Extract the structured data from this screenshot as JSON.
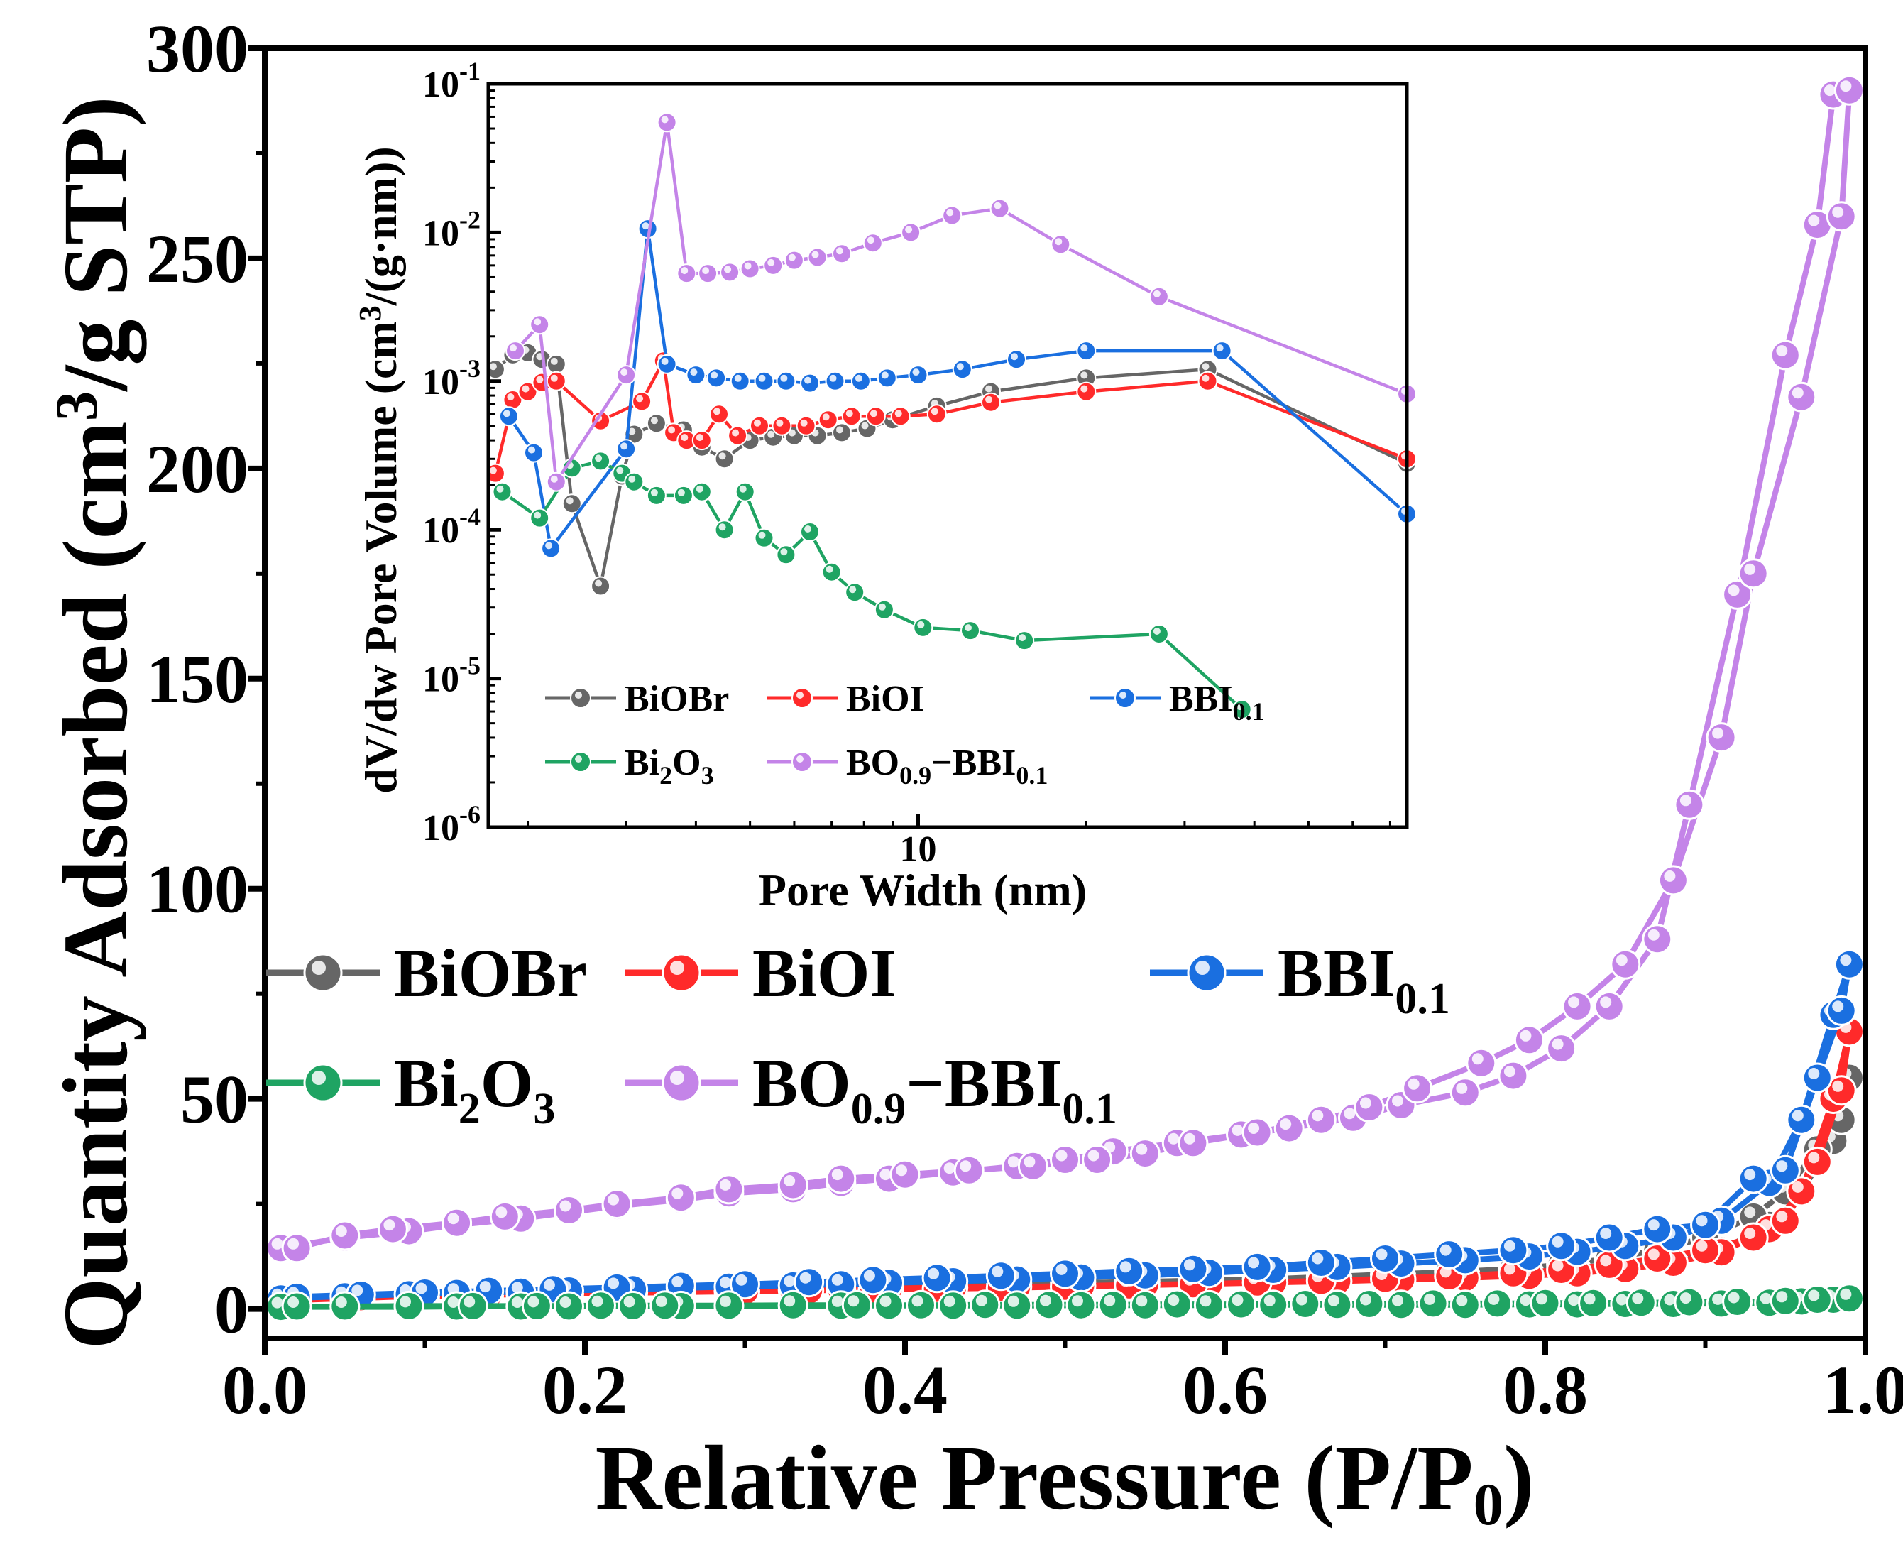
{
  "chart_data": [
    {
      "id": "main",
      "type": "line",
      "xlabel": "Relative Pressure (P/P",
      "xlabel_sub": "0",
      "xlabel_tail": ")",
      "ylabel": "Quantity Adsorbed (cm",
      "ylabel_sup": "3",
      "ylabel_tail": "/g STP)",
      "xlim": [
        0,
        1
      ],
      "ylim": [
        -7,
        300
      ],
      "xticks": [
        0.0,
        0.2,
        0.4,
        0.6,
        0.8,
        1.0
      ],
      "xtick_labels": [
        "0.0",
        "0.2",
        "0.4",
        "0.6",
        "0.8",
        "1.0"
      ],
      "yticks": [
        0,
        50,
        100,
        150,
        200,
        250,
        300
      ],
      "ytick_labels": [
        "0",
        "50",
        "100",
        "150",
        "200",
        "250",
        "300"
      ],
      "legend_position": "left-middle",
      "series": [
        {
          "key": "biobr",
          "color": "#666666",
          "legend_runs": [
            {
              "t": "BiOBr",
              "s": ""
            }
          ],
          "x": [
            0.01,
            0.05,
            0.09,
            0.12,
            0.16,
            0.19,
            0.23,
            0.26,
            0.29,
            0.33,
            0.36,
            0.39,
            0.43,
            0.47,
            0.51,
            0.55,
            0.59,
            0.63,
            0.67,
            0.71,
            0.75,
            0.79,
            0.82,
            0.85,
            0.88,
            0.91,
            0.94,
            0.96,
            0.98,
            0.99,
            0.985,
            0.97,
            0.95,
            0.93,
            0.9,
            0.87,
            0.84,
            0.81,
            0.78,
            0.74,
            0.7,
            0.66,
            0.62,
            0.58,
            0.54,
            0.5,
            0.46,
            0.42,
            0.38,
            0.34,
            0.3,
            0.26,
            0.22,
            0.18,
            0.14,
            0.1,
            0.06,
            0.02
          ],
          "y": [
            2.5,
            3,
            3.5,
            3.8,
            4,
            4.2,
            4.5,
            4.8,
            5,
            5.2,
            5.4,
            5.6,
            5.8,
            6,
            6.2,
            6.5,
            6.8,
            7,
            7.3,
            7.6,
            8,
            8.5,
            9,
            10,
            11.5,
            14,
            20,
            28,
            40,
            55,
            45,
            38,
            28,
            22,
            17,
            14,
            12,
            10.5,
            9.5,
            8.8,
            8.2,
            7.6,
            7,
            6.6,
            6.2,
            5.9,
            5.6,
            5.3,
            5,
            4.8,
            4.6,
            4.4,
            4.2,
            4,
            3.8,
            3.5,
            3.2,
            2.8
          ]
        },
        {
          "key": "bioi",
          "color": "#ff2a2a",
          "legend_runs": [
            {
              "t": "BiOI",
              "s": ""
            }
          ],
          "x": [
            0.01,
            0.05,
            0.09,
            0.12,
            0.16,
            0.19,
            0.23,
            0.26,
            0.29,
            0.33,
            0.36,
            0.39,
            0.43,
            0.47,
            0.51,
            0.55,
            0.59,
            0.63,
            0.67,
            0.71,
            0.75,
            0.79,
            0.82,
            0.85,
            0.88,
            0.91,
            0.94,
            0.96,
            0.98,
            0.99,
            0.985,
            0.97,
            0.95,
            0.93,
            0.9,
            0.87,
            0.84,
            0.81,
            0.78,
            0.74,
            0.7,
            0.66,
            0.62,
            0.58,
            0.54,
            0.5,
            0.46,
            0.42,
            0.38,
            0.34,
            0.3,
            0.26,
            0.22,
            0.18,
            0.14,
            0.1,
            0.06,
            0.02
          ],
          "y": [
            2,
            2.5,
            3,
            3.2,
            3.5,
            3.7,
            3.9,
            4.1,
            4.3,
            4.5,
            4.7,
            4.9,
            5.1,
            5.3,
            5.5,
            5.8,
            6,
            6.3,
            6.6,
            7,
            7.4,
            7.9,
            8.5,
            9.5,
            11,
            13.5,
            19,
            28,
            50,
            66,
            52,
            35,
            21,
            17,
            14,
            12,
            10.5,
            9.3,
            8.5,
            7.8,
            7.2,
            6.7,
            6.3,
            5.9,
            5.6,
            5.3,
            5,
            4.8,
            4.6,
            4.4,
            4.2,
            4,
            3.8,
            3.6,
            3.4,
            3.1,
            2.8,
            2.4
          ]
        },
        {
          "key": "bbi",
          "color": "#1a6fe0",
          "legend_runs": [
            {
              "t": "BBI",
              "s": ""
            },
            {
              "t": "0.1",
              "s": "sub"
            }
          ],
          "x": [
            0.01,
            0.05,
            0.09,
            0.12,
            0.16,
            0.19,
            0.23,
            0.26,
            0.29,
            0.33,
            0.36,
            0.39,
            0.43,
            0.47,
            0.51,
            0.55,
            0.59,
            0.63,
            0.67,
            0.71,
            0.75,
            0.79,
            0.82,
            0.85,
            0.88,
            0.91,
            0.94,
            0.96,
            0.98,
            0.99,
            0.985,
            0.97,
            0.95,
            0.93,
            0.9,
            0.87,
            0.84,
            0.81,
            0.78,
            0.74,
            0.7,
            0.66,
            0.62,
            0.58,
            0.54,
            0.5,
            0.46,
            0.42,
            0.38,
            0.34,
            0.3,
            0.26,
            0.22,
            0.18,
            0.14,
            0.1,
            0.06,
            0.02
          ],
          "y": [
            2.5,
            3,
            3.5,
            3.8,
            4.1,
            4.4,
            4.7,
            5,
            5.3,
            5.6,
            5.9,
            6.2,
            6.6,
            7,
            7.5,
            8,
            8.6,
            9.3,
            10,
            10.8,
            11.6,
            12.5,
            13.6,
            15,
            17,
            21,
            30,
            45,
            70,
            82,
            71,
            55,
            33,
            31,
            20,
            19,
            17,
            15,
            14,
            13,
            12,
            11,
            10,
            9.5,
            9,
            8.4,
            7.9,
            7.4,
            6.9,
            6.4,
            5.9,
            5.5,
            5.1,
            4.7,
            4.3,
            3.9,
            3.4,
            2.9
          ]
        },
        {
          "key": "bi2o3",
          "color": "#1fa463",
          "legend_runs": [
            {
              "t": "Bi",
              "s": ""
            },
            {
              "t": "2",
              "s": "sub"
            },
            {
              "t": "O",
              "s": ""
            },
            {
              "t": "3",
              "s": "sub"
            }
          ],
          "x": [
            0.01,
            0.05,
            0.09,
            0.12,
            0.16,
            0.19,
            0.23,
            0.26,
            0.29,
            0.33,
            0.36,
            0.39,
            0.43,
            0.47,
            0.51,
            0.55,
            0.59,
            0.63,
            0.67,
            0.71,
            0.75,
            0.79,
            0.82,
            0.85,
            0.88,
            0.91,
            0.94,
            0.96,
            0.98,
            0.99,
            0.97,
            0.95,
            0.92,
            0.89,
            0.86,
            0.83,
            0.8,
            0.77,
            0.73,
            0.69,
            0.65,
            0.61,
            0.57,
            0.53,
            0.49,
            0.45,
            0.41,
            0.37,
            0.33,
            0.29,
            0.25,
            0.21,
            0.17,
            0.13,
            0.09,
            0.05,
            0.02
          ],
          "y": [
            0.5,
            0.5,
            0.5,
            0.6,
            0.6,
            0.6,
            0.7,
            0.7,
            0.7,
            0.7,
            0.8,
            0.8,
            0.8,
            0.8,
            0.9,
            0.9,
            0.9,
            1,
            1,
            1,
            1,
            1.1,
            1.1,
            1.2,
            1.2,
            1.3,
            1.5,
            1.8,
            2.2,
            2.5,
            2.2,
            1.9,
            1.7,
            1.6,
            1.5,
            1.4,
            1.4,
            1.3,
            1.3,
            1.2,
            1.2,
            1.1,
            1.1,
            1,
            1,
            1,
            0.9,
            0.9,
            0.9,
            0.8,
            0.8,
            0.8,
            0.7,
            0.7,
            0.7,
            0.6,
            0.6
          ]
        },
        {
          "key": "bo",
          "color": "#c484e8",
          "legend_runs": [
            {
              "t": "BO",
              "s": ""
            },
            {
              "t": "0.9",
              "s": "sub"
            },
            {
              "t": "−BBI",
              "s": ""
            },
            {
              "t": "0.1",
              "s": "sub"
            }
          ],
          "x": [
            0.01,
            0.05,
            0.09,
            0.12,
            0.16,
            0.19,
            0.22,
            0.26,
            0.29,
            0.33,
            0.36,
            0.39,
            0.43,
            0.47,
            0.5,
            0.53,
            0.57,
            0.61,
            0.64,
            0.68,
            0.71,
            0.75,
            0.78,
            0.81,
            0.84,
            0.87,
            0.89,
            0.92,
            0.95,
            0.97,
            0.98,
            0.99,
            0.985,
            0.96,
            0.93,
            0.91,
            0.88,
            0.85,
            0.82,
            0.79,
            0.76,
            0.72,
            0.69,
            0.66,
            0.62,
            0.58,
            0.55,
            0.52,
            0.48,
            0.44,
            0.4,
            0.36,
            0.33,
            0.29,
            0.26,
            0.22,
            0.19,
            0.15,
            0.12,
            0.08,
            0.05,
            0.02
          ],
          "y": [
            14.5,
            17,
            18.5,
            20,
            21.5,
            23,
            24.5,
            26,
            27.5,
            28.5,
            30,
            31,
            32.5,
            34,
            35.5,
            37.5,
            39.5,
            41.5,
            43,
            45.5,
            48.5,
            51.5,
            55.5,
            62,
            72,
            88,
            120,
            170,
            227,
            258,
            289,
            290,
            260,
            217,
            175,
            136,
            102,
            82,
            72,
            64,
            58.5,
            52.5,
            48,
            45,
            42,
            39.5,
            37,
            35.5,
            34,
            33,
            32,
            31,
            29.5,
            28.5,
            26.5,
            25,
            23.5,
            22,
            20.5,
            19,
            17.5,
            14.5
          ]
        }
      ]
    },
    {
      "id": "inset",
      "type": "line",
      "xscale": "log",
      "yscale": "log",
      "xlabel": "Pore Width (nm)",
      "ylabel": "dV/dw Pore Volume (cm",
      "ylabel_sup": "3",
      "ylabel_tail": "/(g·nm))",
      "xlim": [
        1.7,
        75
      ],
      "ylim": [
        1e-06,
        0.1
      ],
      "xtick_labels": [
        "10"
      ],
      "ytick_labels": [
        "10",
        "10",
        "10",
        "10",
        "10",
        "10"
      ],
      "ytick_exponents": [
        "-6",
        "-5",
        "-4",
        "-3",
        "-2",
        "-1"
      ],
      "legend_position": "bottom-left",
      "series": [
        {
          "key": "biobr",
          "color": "#666666",
          "legend_runs": [
            {
              "t": "BiOBr",
              "s": ""
            }
          ],
          "x": [
            1.75,
            1.88,
            2.0,
            2.12,
            2.25,
            2.4,
            2.7,
            2.95,
            3.1,
            3.4,
            3.8,
            4.1,
            4.5,
            5.0,
            5.5,
            6.0,
            6.6,
            7.3,
            8.1,
            9.0,
            10.8,
            13.5,
            20,
            33,
            75
          ],
          "y": [
            0.0012,
            0.0015,
            0.00155,
            0.0014,
            0.0013,
            0.00015,
            4.18e-05,
            0.00023,
            0.00044,
            0.00052,
            0.00047,
            0.00036,
            0.0003,
            0.0004,
            0.00042,
            0.00043,
            0.00043,
            0.00045,
            0.00048,
            0.00055,
            0.00068,
            0.00085,
            0.00105,
            0.0012,
            0.00028
          ]
        },
        {
          "key": "bioi",
          "color": "#ff2a2a",
          "legend_runs": [
            {
              "t": "BiOI",
              "s": ""
            }
          ],
          "x": [
            1.75,
            1.88,
            2.0,
            2.12,
            2.25,
            2.7,
            3.2,
            3.5,
            3.65,
            3.85,
            4.1,
            4.4,
            4.75,
            5.2,
            5.7,
            6.3,
            6.9,
            7.6,
            8.4,
            9.3,
            10.8,
            13.5,
            20,
            33,
            75
          ],
          "y": [
            0.00024,
            0.00075,
            0.00085,
            0.00098,
            0.001,
            0.00054,
            0.00073,
            0.00137,
            0.00045,
            0.0004,
            0.0004,
            0.0006,
            0.00043,
            0.0005,
            0.0005,
            0.0005,
            0.00055,
            0.00058,
            0.00058,
            0.00058,
            0.0006,
            0.00072,
            0.00085,
            0.001,
            0.0003
          ]
        },
        {
          "key": "bbi",
          "color": "#1a6fe0",
          "legend_runs": [
            {
              "t": "BBI",
              "s": ""
            },
            {
              "t": "0.1",
              "s": "sub"
            }
          ],
          "x": [
            1.85,
            2.05,
            2.2,
            3.0,
            3.28,
            3.55,
            4.0,
            4.35,
            4.8,
            5.3,
            5.8,
            6.4,
            7.1,
            7.9,
            8.8,
            10,
            12,
            15,
            20,
            35,
            75
          ],
          "y": [
            0.00058,
            0.00033,
            7.5e-05,
            0.00035,
            0.0106,
            0.0013,
            0.0011,
            0.00105,
            0.001,
            0.001,
            0.001,
            0.00097,
            0.001,
            0.001,
            0.00105,
            0.0011,
            0.0012,
            0.0014,
            0.0016,
            0.0016,
            0.000128
          ]
        },
        {
          "key": "bi2o3",
          "color": "#1fa463",
          "legend_runs": [
            {
              "t": "Bi",
              "s": ""
            },
            {
              "t": "2",
              "s": "sub"
            },
            {
              "t": "O",
              "s": ""
            },
            {
              "t": "3",
              "s": "sub"
            }
          ],
          "x": [
            1.8,
            2.1,
            2.4,
            2.7,
            2.95,
            3.1,
            3.4,
            3.8,
            4.1,
            4.5,
            4.9,
            5.3,
            5.8,
            6.4,
            7.0,
            7.7,
            8.7,
            10.2,
            12.4,
            15.5,
            27,
            38
          ],
          "y": [
            0.00018,
            0.00012,
            0.00026,
            0.00029,
            0.00024,
            0.00021,
            0.00017,
            0.00017,
            0.00018,
            0.0001,
            0.00018,
            8.8e-05,
            6.8e-05,
            9.7e-05,
            5.2e-05,
            3.8e-05,
            2.9e-05,
            2.2e-05,
            2.1e-05,
            1.8e-05,
            1.99e-05,
            6.2e-06
          ]
        },
        {
          "key": "bo",
          "color": "#c484e8",
          "legend_runs": [
            {
              "t": "BO",
              "s": ""
            },
            {
              "t": "0.9",
              "s": "sub"
            },
            {
              "t": "−BBI",
              "s": ""
            },
            {
              "t": "0.1",
              "s": "sub"
            }
          ],
          "x": [
            1.9,
            2.1,
            2.25,
            3.0,
            3.55,
            3.85,
            4.2,
            4.6,
            5.0,
            5.5,
            6.0,
            6.6,
            7.3,
            8.3,
            9.7,
            11.5,
            14.0,
            18,
            27,
            75
          ],
          "y": [
            0.0016,
            0.0024,
            0.00021,
            0.0011,
            0.055,
            0.0053,
            0.0053,
            0.0054,
            0.0057,
            0.006,
            0.0065,
            0.0068,
            0.0072,
            0.0085,
            0.01,
            0.013,
            0.0145,
            0.0083,
            0.0037,
            0.00082
          ]
        }
      ]
    }
  ]
}
